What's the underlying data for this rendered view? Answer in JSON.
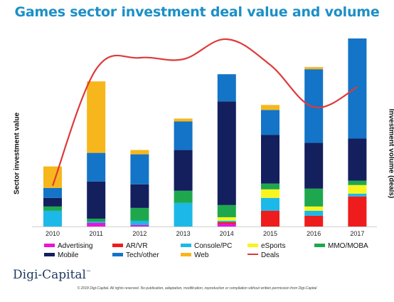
{
  "header": {
    "title": "Games sector investment deal value and volume"
  },
  "footer": {
    "logo": "Digi-Capital",
    "logo_tm": "™",
    "copyright": "© 2018 Digi-Capital. All rights reserved. No publication, adaptation, modification, reproduction or compilation without written permission from Digi-Capital"
  },
  "chart_data": {
    "type": "bar",
    "stacked": true,
    "title": "Games sector investment deal value and volume",
    "ylabel": "Sector investment value",
    "y2label": "Investment volume (deals)",
    "ylim": [
      0,
      265
    ],
    "categories": [
      "2010",
      "2011",
      "2012",
      "2013",
      "2014",
      "2015",
      "2016",
      "2017"
    ],
    "series": [
      {
        "name": "Advertising",
        "color": "#e815d6",
        "values": [
          0,
          5,
          2,
          0,
          4,
          0,
          0,
          0
        ]
      },
      {
        "name": "AR/VR",
        "color": "#ee1c1c",
        "values": [
          0,
          0,
          0,
          0,
          2,
          22,
          15,
          42
        ]
      },
      {
        "name": "Console/PC",
        "color": "#1cb8e8",
        "values": [
          22,
          2,
          6,
          33,
          2,
          18,
          7,
          4
        ]
      },
      {
        "name": "eSports",
        "color": "#f7f51d",
        "values": [
          0,
          0,
          0,
          0,
          5,
          12,
          6,
          12
        ]
      },
      {
        "name": "MMO/MOBA",
        "color": "#1ea84e",
        "values": [
          6,
          4,
          18,
          17,
          17,
          8,
          25,
          6
        ]
      },
      {
        "name": "Mobile",
        "color": "#141f5e",
        "values": [
          12,
          52,
          33,
          57,
          145,
          68,
          64,
          59
        ]
      },
      {
        "name": "Tech/other",
        "color": "#1474c7",
        "values": [
          14,
          40,
          42,
          40,
          38,
          35,
          103,
          140
        ]
      },
      {
        "name": "Web",
        "color": "#f7b71c",
        "values": [
          30,
          100,
          6,
          4,
          0,
          7,
          3,
          0
        ]
      }
    ],
    "line": {
      "name": "Deals",
      "color": "#de3a3a",
      "values": [
        57,
        220,
        236,
        234,
        262,
        226,
        167,
        195
      ]
    },
    "grid": false,
    "legend": "bottom"
  }
}
